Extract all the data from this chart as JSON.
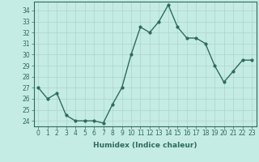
{
  "x": [
    0,
    1,
    2,
    3,
    4,
    5,
    6,
    7,
    8,
    9,
    10,
    11,
    12,
    13,
    14,
    15,
    16,
    17,
    18,
    19,
    20,
    21,
    22,
    23
  ],
  "y": [
    27,
    26,
    26.5,
    24.5,
    24,
    24,
    24,
    23.8,
    25.5,
    27,
    30,
    32.5,
    32,
    33,
    34.5,
    32.5,
    31.5,
    31.5,
    31,
    29,
    27.5,
    28.5,
    29.5,
    29.5
  ],
  "line_color": "#2e6b5e",
  "marker": "o",
  "marker_size": 2,
  "bg_color": "#c5ece4",
  "grid_color": "#aad5cb",
  "xlabel": "Humidex (Indice chaleur)",
  "xlim": [
    -0.5,
    23.5
  ],
  "ylim": [
    23.5,
    34.8
  ],
  "yticks": [
    24,
    25,
    26,
    27,
    28,
    29,
    30,
    31,
    32,
    33,
    34
  ],
  "xticks": [
    0,
    1,
    2,
    3,
    4,
    5,
    6,
    7,
    8,
    9,
    10,
    11,
    12,
    13,
    14,
    15,
    16,
    17,
    18,
    19,
    20,
    21,
    22,
    23
  ],
  "tick_label_size": 5.5,
  "xlabel_size": 6.5,
  "line_width": 1.0
}
